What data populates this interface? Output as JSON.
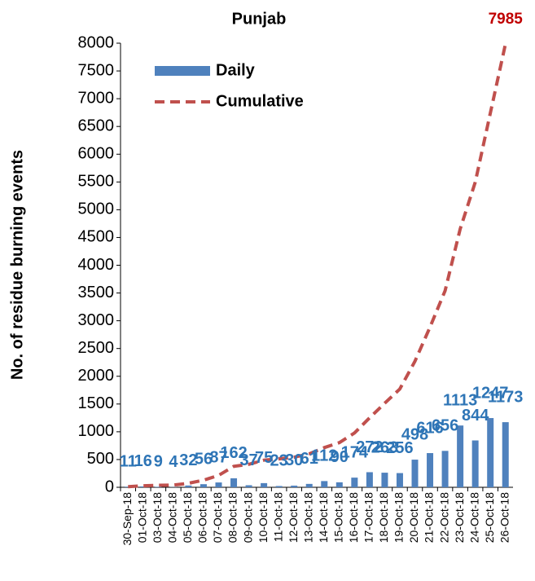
{
  "chart_data": {
    "type": "bar",
    "title": "Punjab",
    "ylabel": "No. of residue burning events",
    "categories": [
      "30-Sep-18",
      "01-Oct-18",
      "03-Oct-18",
      "04-Oct-18",
      "05-Oct-18",
      "06-Oct-18",
      "07-Oct-18",
      "08-Oct-18",
      "09-Oct-18",
      "10-Oct-18",
      "11-Oct-18",
      "12-Oct-18",
      "13-Oct-18",
      "14-Oct-18",
      "15-Oct-18",
      "16-Oct-18",
      "17-Oct-18",
      "18-Oct-18",
      "19-Oct-18",
      "20-Oct-18",
      "21-Oct-18",
      "22-Oct-18",
      "23-Oct-18",
      "24-Oct-18",
      "25-Oct-18",
      "26-Oct-18"
    ],
    "series": [
      {
        "name": "Daily",
        "type": "bar",
        "color": "#4f81bd",
        "label_color": "#2e75b6",
        "data_labels": "all",
        "values": [
          11,
          16,
          9,
          4,
          32,
          56,
          87,
          162,
          37,
          75,
          23,
          30,
          61,
          112,
          90,
          174,
          272,
          263,
          256,
          498,
          616,
          656,
          1113,
          844,
          1247,
          1173
        ]
      },
      {
        "name": "Cumulative",
        "type": "line",
        "color": "#c0504d",
        "label_color": "#c00000",
        "data_labels": "last",
        "values": [
          11,
          27,
          36,
          40,
          72,
          128,
          215,
          377,
          414,
          489,
          512,
          542,
          603,
          715,
          805,
          979,
          1251,
          1514,
          1770,
          2268,
          2884,
          3540,
          4653,
          5497,
          6744,
          7985
        ]
      }
    ],
    "ylim": [
      0,
      8000
    ],
    "yticks": [
      0,
      500,
      1000,
      1500,
      2000,
      2500,
      3000,
      3500,
      4000,
      4500,
      5000,
      5500,
      6000,
      6500,
      7000,
      7500,
      8000
    ],
    "legend": "upper left"
  }
}
